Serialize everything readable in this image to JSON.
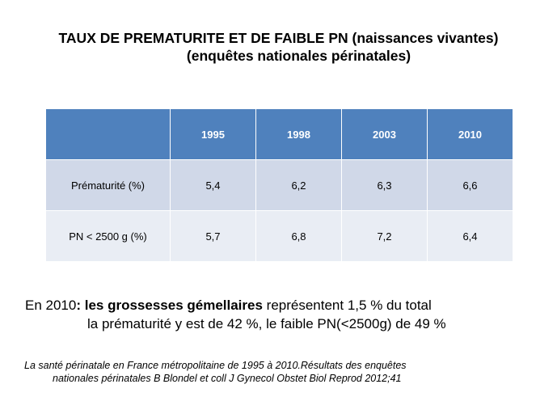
{
  "title": {
    "line1": "TAUX DE PREMATURITE ET DE FAIBLE PN (naissances vivantes)",
    "line2": "(enquêtes nationales périnatales)"
  },
  "table": {
    "columns": [
      "",
      "1995",
      "1998",
      "2003",
      "2010"
    ],
    "rows": [
      {
        "label": "Prématurité  (%)",
        "values": [
          "5,4",
          "6,2",
          "6,3",
          "6,6"
        ]
      },
      {
        "label": "PN < 2500 g   (%)",
        "values": [
          "5,7",
          "6,8",
          "7,2",
          "6,4"
        ]
      }
    ]
  },
  "note": {
    "prefix": "En 2010",
    "bold": ": les grossesses gémellaires",
    "rest": " représentent  1,5 % du total",
    "line2": "la prématurité y est de 42 %, le faible PN(<2500g) de 49 %"
  },
  "reference": {
    "line1": "La santé périnatale en France métropolitaine de 1995 à 2010.Résultats des enquêtes",
    "line2": "nationales périnatales B Blondel et coll J Gynecol Obstet Biol Reprod 2012;41"
  },
  "colors": {
    "header": "#4f81bd",
    "row_odd": "#d0d8e8",
    "row_even": "#e9edf4"
  }
}
